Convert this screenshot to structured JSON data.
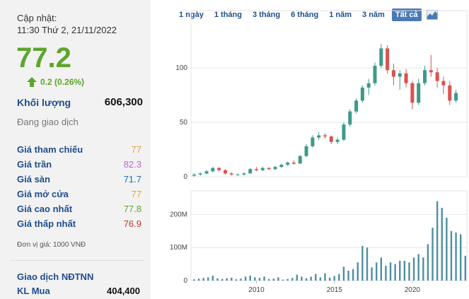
{
  "summary": {
    "updated_label": "Cập nhật:",
    "updated_time": "11:30 Thứ 2, 21/11/2022",
    "price": "77.2",
    "change": "0.2 (0.26%)",
    "volume_label": "Khối lượng",
    "volume": "606,300",
    "status": "Đang giao dịch",
    "price_colors": {
      "up": "#5da52b",
      "ref": "#e8a33c",
      "ceiling": "#b967d8",
      "floor": "#1f6fb2",
      "down": "#c0392b"
    }
  },
  "prices": [
    {
      "label": "Giá tham chiếu",
      "value": "77",
      "color": "#e8a33c"
    },
    {
      "label": "Giá trần",
      "value": "82.3",
      "color": "#b967d8"
    },
    {
      "label": "Giá sàn",
      "value": "71.7",
      "color": "#1f6fb2"
    },
    {
      "label": "Giá mở cửa",
      "value": "77",
      "color": "#e8a33c"
    },
    {
      "label": "Giá cao nhất",
      "value": "77.8",
      "color": "#5da52b"
    },
    {
      "label": "Giá thấp nhất",
      "value": "76.9",
      "color": "#c0392b"
    }
  ],
  "unit_note": "Đơn vị giá: 1000 VNĐ",
  "foreign": {
    "title": "Giao dịch NĐTNN",
    "buy_label": "KL Mua",
    "buy_value": "404,400"
  },
  "ranges": [
    {
      "label": "1 ngày",
      "active": false
    },
    {
      "label": "1 tháng",
      "active": false
    },
    {
      "label": "3 tháng",
      "active": false
    },
    {
      "label": "6 tháng",
      "active": false
    },
    {
      "label": "1 năm",
      "active": false
    },
    {
      "label": "3 năm",
      "active": false
    },
    {
      "label": "Tất cả",
      "active": true
    }
  ],
  "chart_type_icon": "area-chart-icon",
  "chart_data": {
    "type": "candlestick",
    "x_ticks": [
      "2010",
      "2015",
      "2020"
    ],
    "price_ticks": [
      "0",
      "50",
      "100"
    ],
    "volume_ticks": [
      "0",
      "100M",
      "200M"
    ],
    "price_ylim": [
      0,
      130
    ],
    "volume_ylim": [
      0,
      250
    ],
    "colors": {
      "up": "#3d9a8a",
      "down": "#d9534f",
      "volume": "#4f8ea3"
    },
    "candles": [
      {
        "x": 2006.0,
        "o": 1,
        "h": 3,
        "l": 0,
        "c": 2
      },
      {
        "x": 2006.4,
        "o": 2,
        "h": 4,
        "l": 1,
        "c": 3
      },
      {
        "x": 2006.8,
        "o": 3,
        "h": 6,
        "l": 2,
        "c": 5
      },
      {
        "x": 2007.2,
        "o": 5,
        "h": 9,
        "l": 4,
        "c": 8
      },
      {
        "x": 2007.6,
        "o": 8,
        "h": 9,
        "l": 5,
        "c": 6
      },
      {
        "x": 2008.0,
        "o": 6,
        "h": 7,
        "l": 2,
        "c": 3
      },
      {
        "x": 2008.4,
        "o": 3,
        "h": 4,
        "l": 1,
        "c": 2
      },
      {
        "x": 2008.8,
        "o": 2,
        "h": 3,
        "l": 1,
        "c": 2
      },
      {
        "x": 2009.2,
        "o": 2,
        "h": 4,
        "l": 1,
        "c": 3
      },
      {
        "x": 2009.6,
        "o": 3,
        "h": 8,
        "l": 3,
        "c": 7
      },
      {
        "x": 2010.0,
        "o": 7,
        "h": 9,
        "l": 5,
        "c": 6
      },
      {
        "x": 2010.4,
        "o": 6,
        "h": 9,
        "l": 5,
        "c": 8
      },
      {
        "x": 2010.8,
        "o": 8,
        "h": 9,
        "l": 6,
        "c": 7
      },
      {
        "x": 2011.2,
        "o": 7,
        "h": 10,
        "l": 6,
        "c": 9
      },
      {
        "x": 2011.6,
        "o": 9,
        "h": 12,
        "l": 8,
        "c": 11
      },
      {
        "x": 2012.0,
        "o": 11,
        "h": 14,
        "l": 10,
        "c": 13
      },
      {
        "x": 2012.4,
        "o": 13,
        "h": 15,
        "l": 11,
        "c": 12
      },
      {
        "x": 2012.8,
        "o": 12,
        "h": 20,
        "l": 12,
        "c": 19
      },
      {
        "x": 2013.2,
        "o": 19,
        "h": 30,
        "l": 18,
        "c": 28
      },
      {
        "x": 2013.6,
        "o": 28,
        "h": 38,
        "l": 27,
        "c": 36
      },
      {
        "x": 2014.0,
        "o": 36,
        "h": 41,
        "l": 34,
        "c": 38
      },
      {
        "x": 2014.4,
        "o": 38,
        "h": 40,
        "l": 35,
        "c": 37
      },
      {
        "x": 2014.8,
        "o": 37,
        "h": 38,
        "l": 30,
        "c": 32
      },
      {
        "x": 2015.2,
        "o": 32,
        "h": 36,
        "l": 30,
        "c": 34
      },
      {
        "x": 2015.6,
        "o": 34,
        "h": 50,
        "l": 33,
        "c": 48
      },
      {
        "x": 2016.0,
        "o": 48,
        "h": 62,
        "l": 46,
        "c": 60
      },
      {
        "x": 2016.4,
        "o": 60,
        "h": 72,
        "l": 58,
        "c": 70
      },
      {
        "x": 2016.8,
        "o": 70,
        "h": 84,
        "l": 68,
        "c": 82
      },
      {
        "x": 2017.2,
        "o": 82,
        "h": 90,
        "l": 75,
        "c": 86
      },
      {
        "x": 2017.6,
        "o": 86,
        "h": 105,
        "l": 84,
        "c": 102
      },
      {
        "x": 2018.0,
        "o": 102,
        "h": 122,
        "l": 100,
        "c": 118
      },
      {
        "x": 2018.4,
        "o": 118,
        "h": 121,
        "l": 95,
        "c": 98
      },
      {
        "x": 2018.8,
        "o": 98,
        "h": 104,
        "l": 84,
        "c": 92
      },
      {
        "x": 2019.2,
        "o": 92,
        "h": 98,
        "l": 80,
        "c": 95
      },
      {
        "x": 2019.6,
        "o": 95,
        "h": 99,
        "l": 82,
        "c": 86
      },
      {
        "x": 2020.0,
        "o": 86,
        "h": 88,
        "l": 62,
        "c": 68
      },
      {
        "x": 2020.4,
        "o": 68,
        "h": 90,
        "l": 66,
        "c": 86
      },
      {
        "x": 2020.8,
        "o": 86,
        "h": 102,
        "l": 84,
        "c": 98
      },
      {
        "x": 2021.2,
        "o": 98,
        "h": 112,
        "l": 92,
        "c": 96
      },
      {
        "x": 2021.6,
        "o": 96,
        "h": 100,
        "l": 82,
        "c": 88
      },
      {
        "x": 2022.0,
        "o": 88,
        "h": 92,
        "l": 76,
        "c": 84
      },
      {
        "x": 2022.4,
        "o": 84,
        "h": 88,
        "l": 66,
        "c": 70
      },
      {
        "x": 2022.8,
        "o": 70,
        "h": 80,
        "l": 68,
        "c": 77
      }
    ],
    "volume": [
      {
        "x": 2006.0,
        "v": 4
      },
      {
        "x": 2006.3,
        "v": 6
      },
      {
        "x": 2006.6,
        "v": 8
      },
      {
        "x": 2006.9,
        "v": 10
      },
      {
        "x": 2007.2,
        "v": 15
      },
      {
        "x": 2007.5,
        "v": 7
      },
      {
        "x": 2007.8,
        "v": 5
      },
      {
        "x": 2008.1,
        "v": 7
      },
      {
        "x": 2008.4,
        "v": 9
      },
      {
        "x": 2008.7,
        "v": 4
      },
      {
        "x": 2009.0,
        "v": 6
      },
      {
        "x": 2009.3,
        "v": 12
      },
      {
        "x": 2009.6,
        "v": 15
      },
      {
        "x": 2009.9,
        "v": 10
      },
      {
        "x": 2010.2,
        "v": 8
      },
      {
        "x": 2010.5,
        "v": 12
      },
      {
        "x": 2010.8,
        "v": 5
      },
      {
        "x": 2011.1,
        "v": 6
      },
      {
        "x": 2011.4,
        "v": 10
      },
      {
        "x": 2011.7,
        "v": 3
      },
      {
        "x": 2012.0,
        "v": 5
      },
      {
        "x": 2012.3,
        "v": 8
      },
      {
        "x": 2012.6,
        "v": 18
      },
      {
        "x": 2012.9,
        "v": 12
      },
      {
        "x": 2013.2,
        "v": 7
      },
      {
        "x": 2013.5,
        "v": 12
      },
      {
        "x": 2013.8,
        "v": 20
      },
      {
        "x": 2014.1,
        "v": 10
      },
      {
        "x": 2014.4,
        "v": 22
      },
      {
        "x": 2014.7,
        "v": 9
      },
      {
        "x": 2015.0,
        "v": 14
      },
      {
        "x": 2015.3,
        "v": 20
      },
      {
        "x": 2015.6,
        "v": 42
      },
      {
        "x": 2015.9,
        "v": 30
      },
      {
        "x": 2016.2,
        "v": 35
      },
      {
        "x": 2016.5,
        "v": 55
      },
      {
        "x": 2016.8,
        "v": 105
      },
      {
        "x": 2017.1,
        "v": 100
      },
      {
        "x": 2017.4,
        "v": 40
      },
      {
        "x": 2017.7,
        "v": 55
      },
      {
        "x": 2018.0,
        "v": 70
      },
      {
        "x": 2018.3,
        "v": 45
      },
      {
        "x": 2018.6,
        "v": 55
      },
      {
        "x": 2018.9,
        "v": 50
      },
      {
        "x": 2019.2,
        "v": 60
      },
      {
        "x": 2019.5,
        "v": 60
      },
      {
        "x": 2019.8,
        "v": 55
      },
      {
        "x": 2020.1,
        "v": 70
      },
      {
        "x": 2020.4,
        "v": 80
      },
      {
        "x": 2020.7,
        "v": 70
      },
      {
        "x": 2021.0,
        "v": 110
      },
      {
        "x": 2021.3,
        "v": 160
      },
      {
        "x": 2021.6,
        "v": 240
      },
      {
        "x": 2021.9,
        "v": 220
      },
      {
        "x": 2022.2,
        "v": 190
      },
      {
        "x": 2022.5,
        "v": 150
      },
      {
        "x": 2022.8,
        "v": 145
      },
      {
        "x": 2023.1,
        "v": 140
      },
      {
        "x": 2023.4,
        "v": 75
      }
    ],
    "x_range": [
      2005.8,
      2023.5
    ]
  }
}
